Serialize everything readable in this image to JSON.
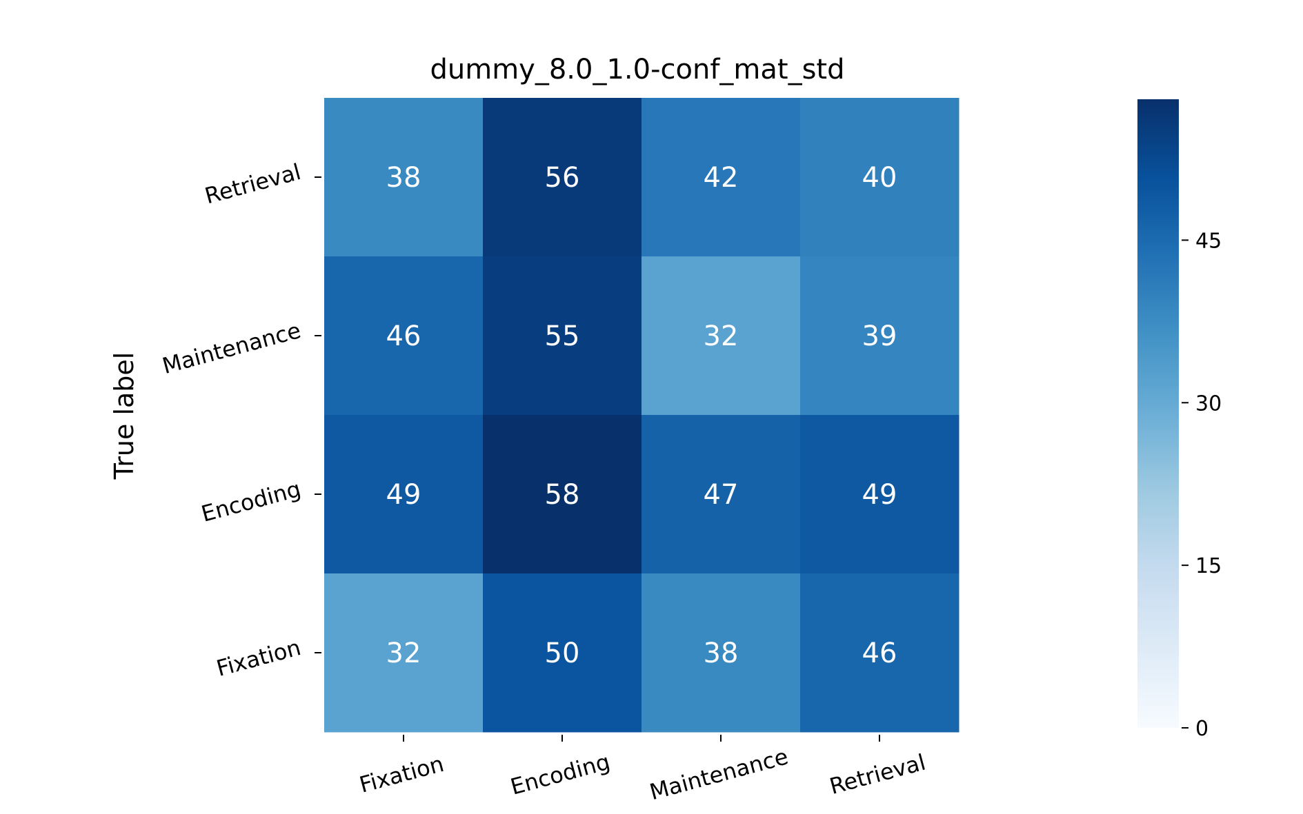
{
  "chart_data": {
    "type": "heatmap",
    "title": "dummy_8.0_1.0-conf_mat_std",
    "xlabel": "",
    "ylabel": "True label",
    "x_categories": [
      "Fixation",
      "Encoding",
      "Maintenance",
      "Retrieval"
    ],
    "y_categories": [
      "Retrieval",
      "Maintenance",
      "Encoding",
      "Fixation"
    ],
    "values": [
      [
        38,
        56,
        42,
        40
      ],
      [
        46,
        55,
        32,
        39
      ],
      [
        49,
        58,
        47,
        49
      ],
      [
        32,
        50,
        38,
        46
      ]
    ],
    "colorscale": {
      "name": "Blues",
      "vmin": 0,
      "vmax": 58,
      "ticks": [
        0,
        15,
        30,
        45
      ],
      "tick_labels": [
        "0",
        "15",
        "30",
        "45"
      ]
    }
  }
}
